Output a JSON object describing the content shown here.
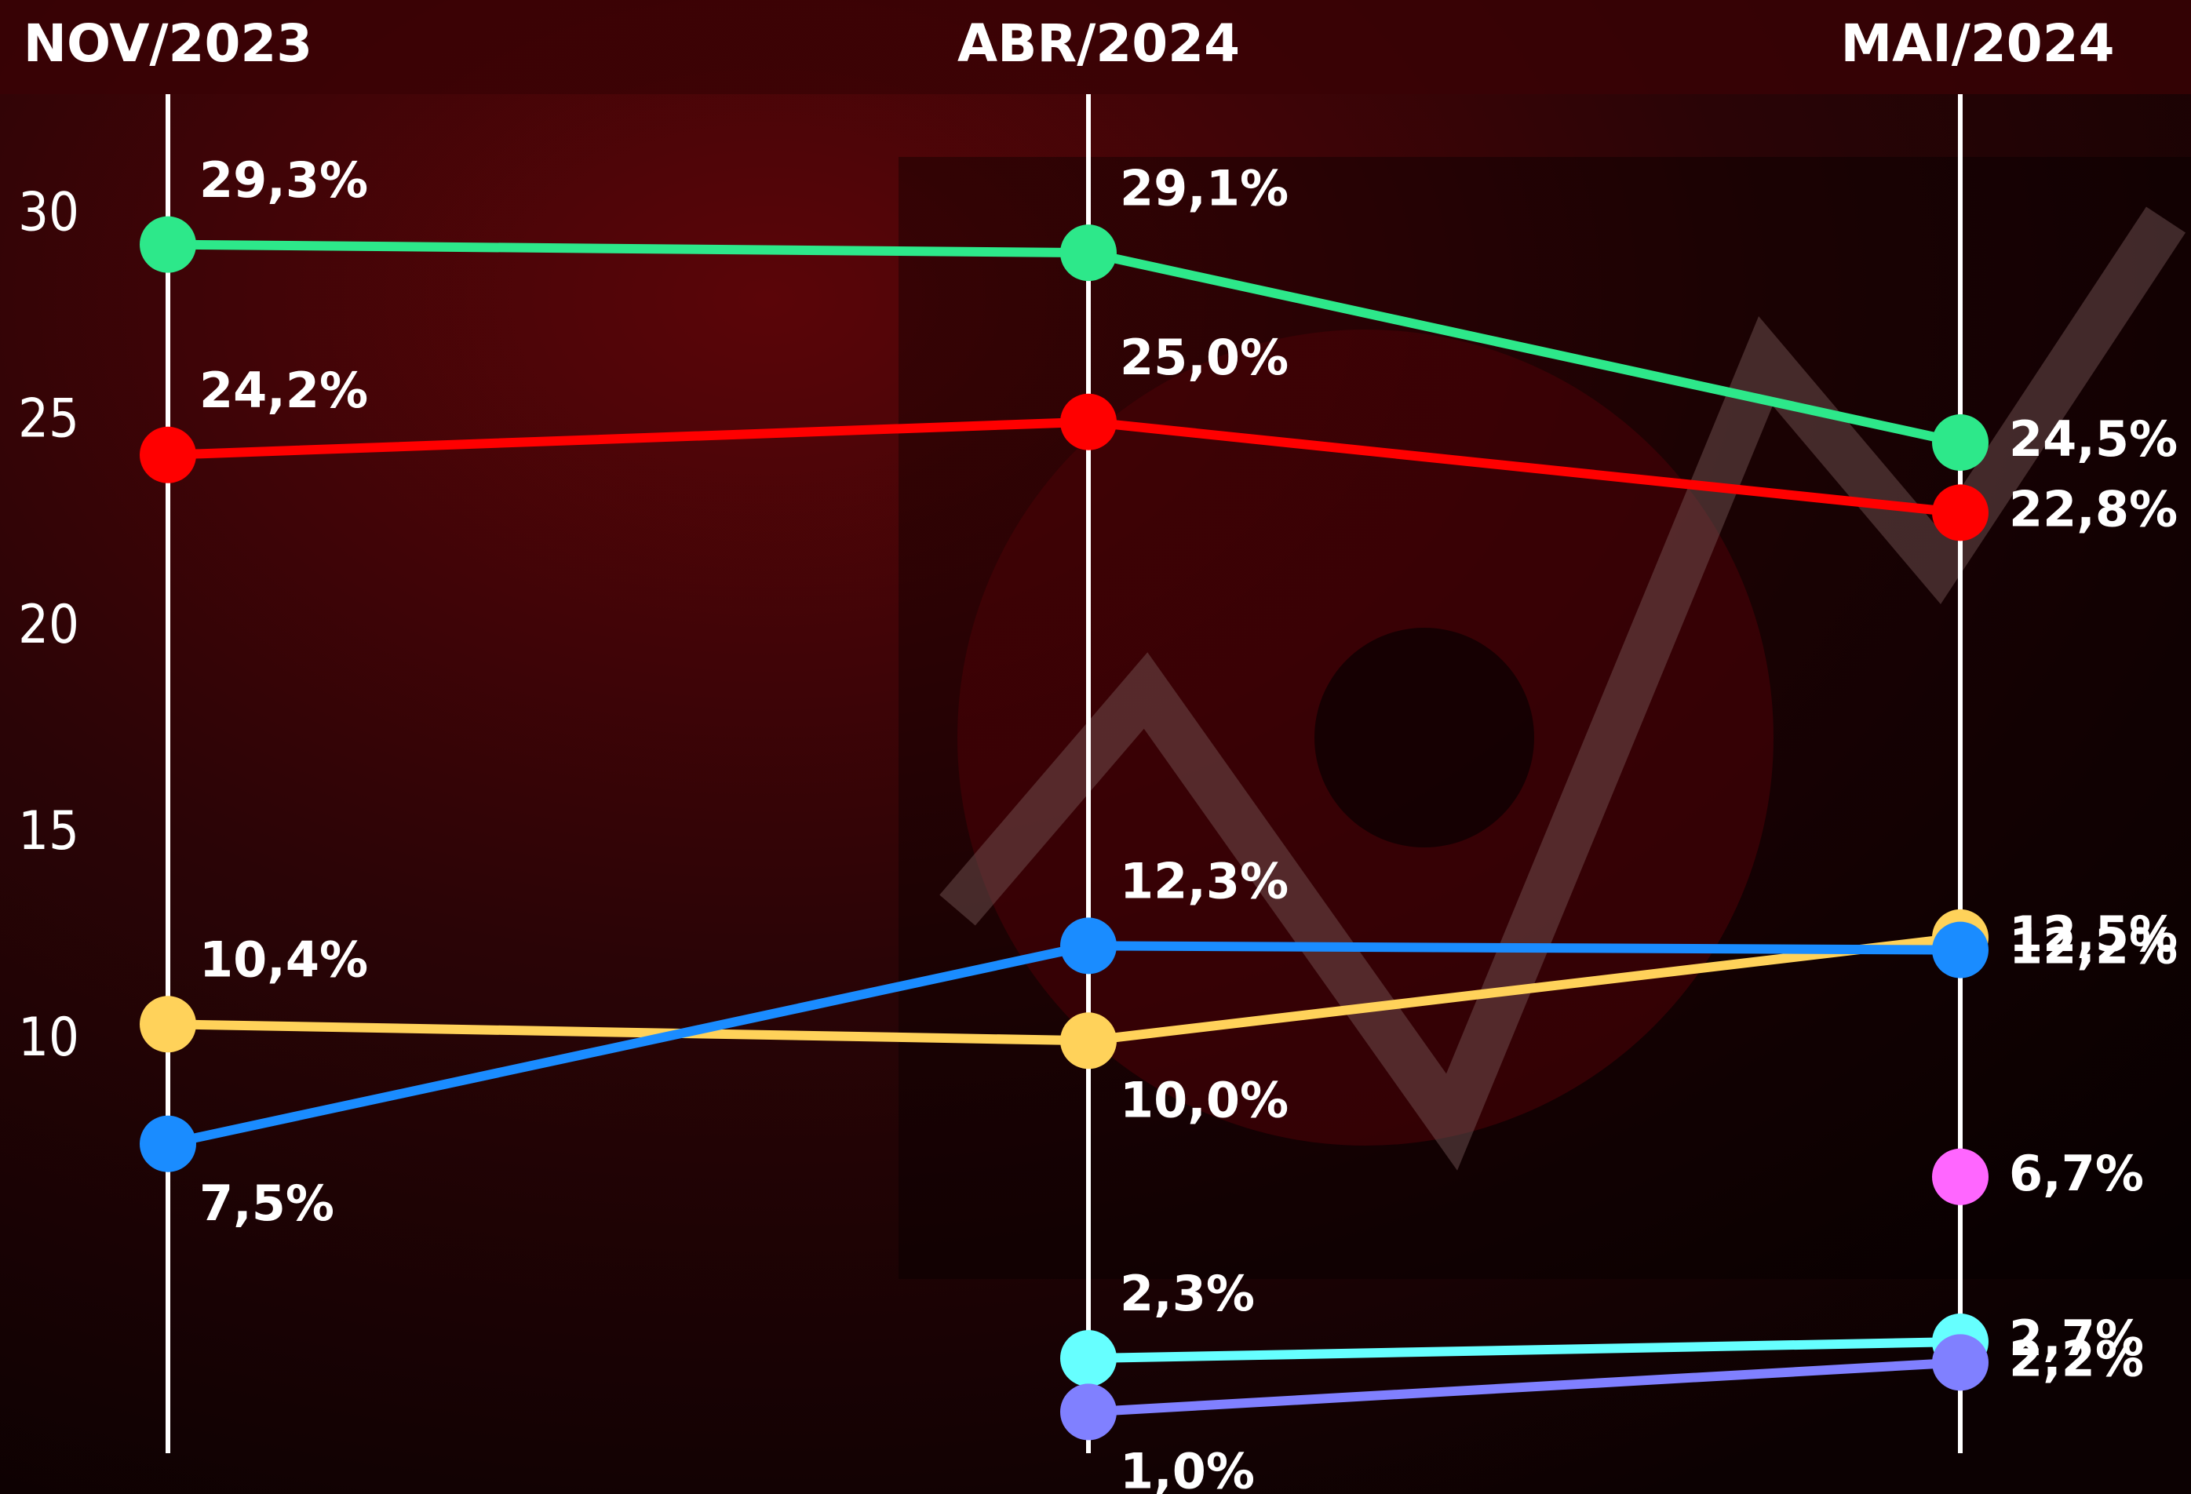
{
  "chart_data": {
    "type": "line",
    "categories": [
      "NOV/2023",
      "ABR/2024",
      "MAI/2024"
    ],
    "ylim": [
      0,
      31.5
    ],
    "yticks": [
      10,
      15,
      20,
      25,
      30
    ],
    "series": [
      {
        "color": "#2de88a",
        "values": [
          29.3,
          29.1,
          24.5
        ],
        "value_labels": [
          "29,3%",
          "29,1%",
          "24,5%"
        ]
      },
      {
        "color": "#ff0000",
        "values": [
          24.2,
          25.0,
          22.8
        ],
        "value_labels": [
          "24,2%",
          "25,0%",
          "22,8%"
        ]
      },
      {
        "color": "#ffd25a",
        "values": [
          10.4,
          10.0,
          12.5
        ],
        "value_labels": [
          "10,4%",
          "10,0%",
          "12,5%"
        ]
      },
      {
        "color": "#1a8cff",
        "values": [
          7.5,
          12.3,
          12.2
        ],
        "value_labels": [
          "7,5%",
          "12,3%",
          "12,2%"
        ]
      },
      {
        "color": "#ff66ff",
        "values": [
          null,
          null,
          6.7
        ],
        "value_labels": [
          null,
          null,
          "6,7%"
        ]
      },
      {
        "color": "#66ffff",
        "values": [
          null,
          2.3,
          2.7
        ],
        "value_labels": [
          null,
          "2,3%",
          "2,7%"
        ]
      },
      {
        "color": "#8080ff",
        "values": [
          null,
          1.0,
          2.2
        ],
        "value_labels": [
          null,
          "1,0%",
          "2,2%"
        ]
      }
    ]
  }
}
